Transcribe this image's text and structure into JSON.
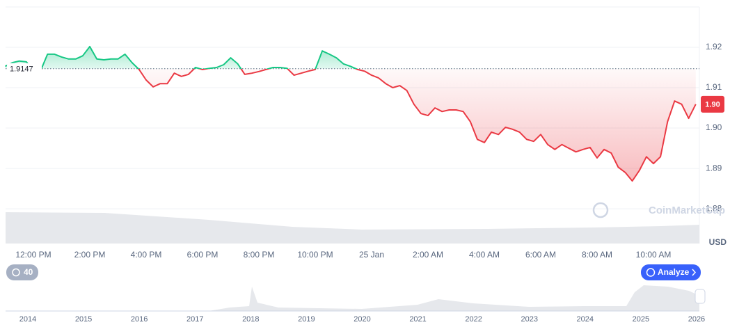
{
  "chart_data": {
    "type": "line",
    "categories": [
      null,
      null,
      null,
      null,
      "12:00 PM",
      null,
      null,
      null,
      null,
      null,
      null,
      null,
      "2:00 PM",
      null,
      null,
      null,
      null,
      null,
      null,
      null,
      "4:00 PM",
      null,
      null,
      null,
      null,
      null,
      null,
      null,
      "6:00 PM",
      null,
      null,
      null,
      null,
      null,
      null,
      null,
      "8:00 PM",
      null,
      null,
      null,
      null,
      null,
      null,
      null,
      "10:00 PM",
      null,
      null,
      null,
      null,
      null,
      null,
      null,
      "25 Jan",
      null,
      null,
      null,
      null,
      null,
      null,
      null,
      "2:00 AM",
      null,
      null,
      null,
      null,
      null,
      null,
      null,
      "4:00 AM",
      null,
      null,
      null,
      null,
      null,
      null,
      null,
      "6:00 AM",
      null,
      null,
      null,
      null,
      null,
      null,
      null,
      "8:00 AM",
      null,
      null,
      null,
      null,
      null,
      null,
      null,
      "10:00 AM",
      null,
      null,
      null,
      null,
      null,
      null
    ],
    "values": [
      1.9153,
      1.9162,
      1.9166,
      1.9164,
      1.9143,
      1.9141,
      1.9183,
      1.9183,
      1.9176,
      1.9171,
      1.9171,
      1.9179,
      1.9202,
      1.9171,
      1.9169,
      1.9171,
      1.9171,
      1.9183,
      1.9162,
      1.9145,
      1.9119,
      1.9102,
      1.911,
      1.911,
      1.9136,
      1.9128,
      1.9133,
      1.915,
      1.9145,
      1.9148,
      1.915,
      1.9157,
      1.9174,
      1.9159,
      1.9133,
      1.9136,
      1.914,
      1.9145,
      1.915,
      1.915,
      1.9148,
      1.9131,
      1.9136,
      1.9141,
      1.9145,
      1.9191,
      1.9183,
      1.9174,
      1.9159,
      1.9153,
      1.9145,
      1.9141,
      1.9131,
      1.9124,
      1.911,
      1.91,
      1.9105,
      1.9093,
      1.9059,
      1.9036,
      1.9031,
      1.905,
      1.9041,
      1.9045,
      1.9045,
      1.9041,
      1.9016,
      1.8972,
      1.8964,
      1.899,
      1.8984,
      1.9002,
      1.8997,
      1.899,
      1.8972,
      1.8967,
      1.8984,
      1.8959,
      1.8947,
      1.8959,
      1.895,
      1.8941,
      1.8947,
      1.8952,
      1.8926,
      1.8947,
      1.8938,
      1.8903,
      1.889,
      1.8869,
      1.8895,
      1.8929,
      1.8912,
      1.8929,
      1.9016,
      1.9067,
      1.9059,
      1.9024,
      1.9059
    ],
    "color_up": "#16c784",
    "color_down": "#ea3943",
    "baseline": 1.9147,
    "current_price_label": "1.90",
    "ylim": [
      1.8714,
      1.93
    ],
    "yticks": [
      1.88,
      1.89,
      {
        "value": 1.9,
        "label": "1.90"
      },
      1.91,
      1.92
    ],
    "y_unit": "USD",
    "grid": true
  },
  "watermark": "CoinMarketCap",
  "badge": "40",
  "analyze_button": "Analyze",
  "navigator": {
    "years": [
      "2014",
      "2015",
      "2016",
      "2017",
      "2018",
      "2019",
      "2020",
      "2021",
      "2022",
      "2023",
      "2024",
      "2025",
      "2026"
    ]
  }
}
